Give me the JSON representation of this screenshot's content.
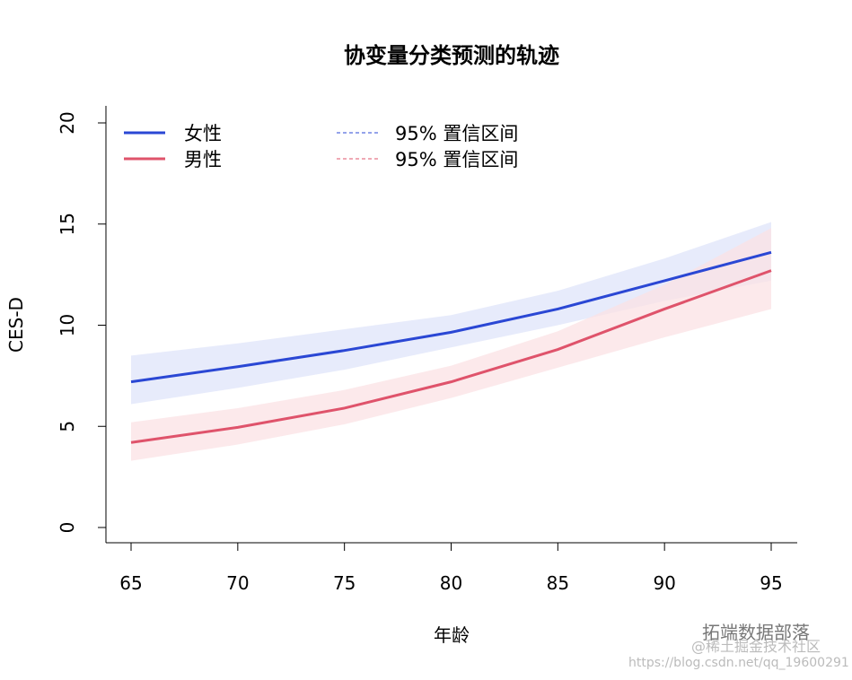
{
  "chart_data": {
    "type": "line",
    "title": "协变量分类预测的轨迹",
    "xlabel": "年龄",
    "ylabel": "CES-D",
    "xlim": [
      65,
      95
    ],
    "ylim": [
      0,
      20
    ],
    "xticks": [
      65,
      70,
      75,
      80,
      85,
      90,
      95
    ],
    "yticks": [
      0,
      5,
      10,
      15,
      20
    ],
    "grid": false,
    "legend_placement": "top-left",
    "x": [
      65,
      70,
      75,
      80,
      85,
      90,
      95
    ],
    "series": [
      {
        "name": "女性",
        "color": "#2a47d4",
        "ci_color": "#dfe4fa",
        "values": [
          7.2,
          7.95,
          8.75,
          9.65,
          10.8,
          12.2,
          13.6
        ],
        "ci_lower": [
          6.1,
          6.9,
          7.8,
          8.9,
          10.0,
          11.2,
          12.2
        ],
        "ci_upper": [
          8.5,
          9.1,
          9.8,
          10.5,
          11.7,
          13.3,
          15.1
        ]
      },
      {
        "name": "男性",
        "color": "#df536b",
        "ci_color": "#fbe1e4",
        "values": [
          4.2,
          4.95,
          5.9,
          7.2,
          8.8,
          10.8,
          12.7
        ],
        "ci_lower": [
          3.3,
          4.1,
          5.1,
          6.4,
          7.9,
          9.4,
          10.8
        ],
        "ci_upper": [
          5.2,
          5.9,
          6.8,
          8.0,
          9.7,
          12.0,
          14.8
        ]
      }
    ],
    "legend": [
      {
        "label": "女性",
        "style": "solid",
        "color": "#2a47d4"
      },
      {
        "label": "男性",
        "style": "solid",
        "color": "#df536b"
      },
      {
        "label": "95% 置信区间",
        "style": "dashed",
        "color": "#2a47d4"
      },
      {
        "label": "95% 置信区间",
        "style": "dashed",
        "color": "#df536b"
      }
    ]
  },
  "watermark": {
    "line1": "拓端数据部落",
    "line2": "@稀土掘金技术社区",
    "line3": "https://blog.csdn.net/qq_19600291"
  }
}
